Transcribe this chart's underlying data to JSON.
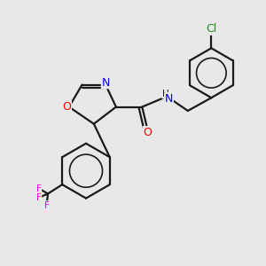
{
  "background_color": "#e8e8e8",
  "bond_color": "#1a1a1a",
  "atom_colors": {
    "O": "#ff0000",
    "N": "#0000ee",
    "Cl": "#228b22",
    "F": "#ee00ee"
  },
  "bond_width": 1.6,
  "figsize": [
    3.0,
    3.0
  ],
  "dpi": 100,
  "xlim": [
    0,
    10
  ],
  "ylim": [
    0,
    10
  ]
}
